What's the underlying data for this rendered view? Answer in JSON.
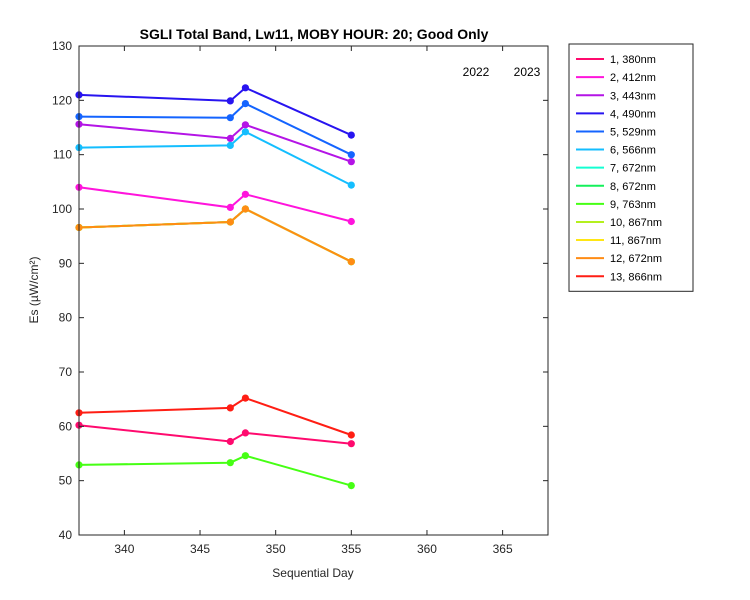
{
  "chart_data": {
    "type": "line",
    "title": "SGLI Total Band,  Lw11, MOBY HOUR: 20;  Good Only",
    "xlabel": "Sequential Day",
    "ylabel": "Es (µW/cm²)",
    "xlim": [
      337,
      368
    ],
    "ylim": [
      40,
      130
    ],
    "xticks": [
      340,
      345,
      350,
      355,
      360,
      365
    ],
    "yticks": [
      40,
      50,
      60,
      70,
      80,
      90,
      100,
      110,
      120,
      130
    ],
    "grid": false,
    "legend_position": "outside-right",
    "annotations": [
      "2022",
      "2023"
    ],
    "x": [
      337,
      347,
      348,
      355
    ],
    "series": [
      {
        "name": "1, 380nm",
        "color": "#ff0a6e",
        "values": [
          60.2,
          57.2,
          58.8,
          56.8
        ]
      },
      {
        "name": "2, 412nm",
        "color": "#ff14dc",
        "values": [
          104.0,
          100.3,
          102.7,
          97.7
        ]
      },
      {
        "name": "3, 443nm",
        "color": "#b414e6",
        "values": [
          115.6,
          113.0,
          115.5,
          108.7
        ]
      },
      {
        "name": "4, 490nm",
        "color": "#2814f0",
        "values": [
          121.0,
          119.9,
          122.3,
          113.6
        ]
      },
      {
        "name": "5, 529nm",
        "color": "#1464ff",
        "values": [
          117.0,
          116.8,
          119.4,
          110.0
        ]
      },
      {
        "name": "6, 566nm",
        "color": "#14beff",
        "values": [
          111.3,
          111.7,
          114.2,
          104.4
        ]
      },
      {
        "name": "7, 672nm",
        "color": "#14ffd2",
        "values": [
          96.6,
          97.6,
          100.0,
          90.3
        ]
      },
      {
        "name": "8, 672nm",
        "color": "#14f05a",
        "values": [
          96.6,
          97.6,
          100.0,
          90.3
        ]
      },
      {
        "name": "9, 763nm",
        "color": "#46ff14",
        "values": [
          52.9,
          53.3,
          54.6,
          49.1
        ]
      },
      {
        "name": "10, 867nm",
        "color": "#b4f01e",
        "values": [
          96.6,
          97.6,
          100.0,
          90.3
        ]
      },
      {
        "name": "11, 867nm",
        "color": "#ffe614",
        "values": [
          96.6,
          97.6,
          100.0,
          90.3
        ]
      },
      {
        "name": "12, 672nm",
        "color": "#ff8c14",
        "values": [
          96.6,
          97.6,
          100.0,
          90.3
        ]
      },
      {
        "name": "13, 866nm",
        "color": "#ff1e14",
        "values": [
          62.5,
          63.4,
          65.2,
          58.4
        ]
      }
    ]
  }
}
